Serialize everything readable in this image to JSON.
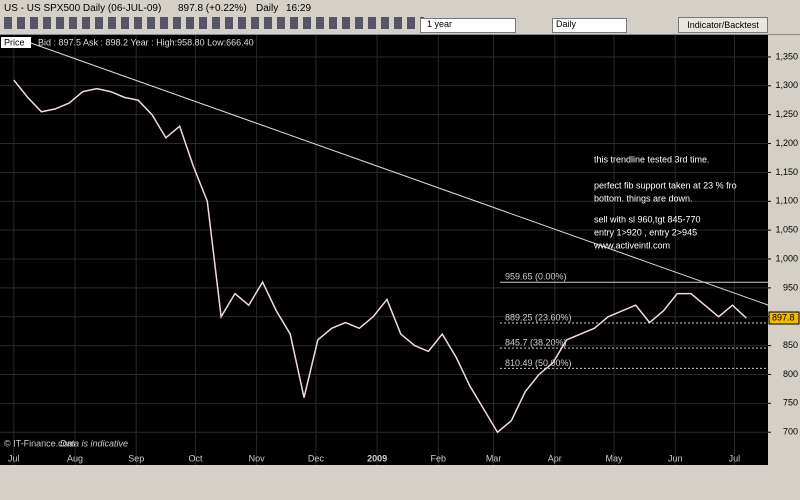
{
  "toolbar": {
    "symbol": "US - US SPX500 Daily (06-JUL-09)",
    "price": "897.8 (+0.22%)",
    "interval": "Daily",
    "time": "16:29",
    "range_select": "1 year",
    "period_select": "Daily",
    "button": "Indicator/Backtest"
  },
  "chart_data": {
    "type": "line",
    "quote": "Bid : 897.5 Ask : 898.2  Year : High:958.80 Low:666.40",
    "footer": "© IT-Finance.com",
    "footer_note": "Data is indicative",
    "annotations": [
      "this trendline tested 3rd time.",
      "perfect fib support taken at 23 % fro",
      "bottom. things are down.",
      "sell with sl 960,tgt 845-770",
      "entry 1>920 , entry 2>945",
      "www.activeintl.com"
    ],
    "x": [
      0,
      7,
      14,
      21,
      28,
      35,
      42,
      49,
      56,
      63,
      70,
      77,
      84,
      91,
      98,
      105,
      112,
      119,
      126,
      133,
      140,
      147,
      154,
      161,
      168,
      175,
      182,
      189,
      196,
      203,
      210,
      217,
      224,
      231,
      238,
      245,
      252,
      259,
      266,
      273,
      280,
      287,
      294,
      301,
      308,
      315,
      322,
      329,
      336,
      343,
      350,
      357,
      364,
      371
    ],
    "series": [
      {
        "name": "Price",
        "color": "#f0d8ea",
        "values": [
          1310,
          1280,
          1255,
          1260,
          1270,
          1290,
          1295,
          1290,
          1280,
          1275,
          1250,
          1210,
          1230,
          1160,
          1100,
          900,
          940,
          920,
          960,
          910,
          870,
          760,
          860,
          880,
          890,
          880,
          900,
          930,
          870,
          850,
          840,
          870,
          830,
          780,
          740,
          700,
          720,
          770,
          800,
          820,
          860,
          870,
          880,
          900,
          910,
          920,
          890,
          910,
          940,
          940,
          920,
          900,
          920,
          897.8
        ]
      }
    ],
    "xlim": [
      -7,
      382
    ],
    "xticks": [
      {
        "value": 0,
        "label": "Jul"
      },
      {
        "value": 31,
        "label": "Aug"
      },
      {
        "value": 62,
        "label": "Sep"
      },
      {
        "value": 92,
        "label": "Oct"
      },
      {
        "value": 123,
        "label": "Nov"
      },
      {
        "value": 153,
        "label": "Dec"
      },
      {
        "value": 184,
        "label": "2009"
      },
      {
        "value": 215,
        "label": "Feb"
      },
      {
        "value": 243,
        "label": "Mar"
      },
      {
        "value": 274,
        "label": "Apr"
      },
      {
        "value": 304,
        "label": "May"
      },
      {
        "value": 335,
        "label": "Jun"
      },
      {
        "value": 365,
        "label": "Jul"
      }
    ],
    "ylim": [
      664,
      1388
    ],
    "yticks": [
      700,
      750,
      800,
      850,
      900,
      950,
      {
        "value": 1000,
        "label": "1,000"
      },
      {
        "value": 1050,
        "label": "1,050"
      },
      {
        "value": 1100,
        "label": "1,100"
      },
      {
        "value": 1150,
        "label": "1,150"
      },
      {
        "value": 1200,
        "label": "1,200"
      },
      {
        "value": 1250,
        "label": "1,250"
      },
      {
        "value": 1300,
        "label": "1,300"
      },
      {
        "value": 1350,
        "label": "1,350"
      }
    ],
    "grid": true,
    "levels": [
      {
        "value": 959.65,
        "label": "959.65 (0.00%)"
      },
      {
        "value": 889.25,
        "label": "889.25 (23.60%)"
      },
      {
        "value": 845.7,
        "label": "845.7 (38.20%)"
      },
      {
        "value": 810.49,
        "label": "810.49 (50.00%)"
      }
    ]
  }
}
